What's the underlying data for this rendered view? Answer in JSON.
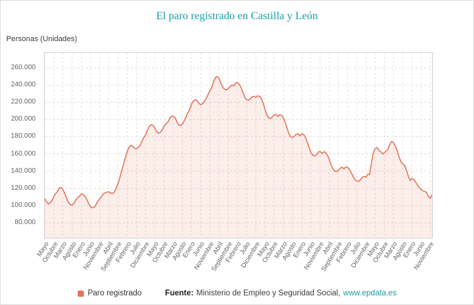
{
  "title": "El paro registrado en Castilla y León",
  "y_axis_label": "Personas (Unidades)",
  "legend": {
    "label": "Paro registrado"
  },
  "footer": {
    "source_prefix": "Fuente:",
    "source_text": "Ministerio de Empleo y Seguridad Social,",
    "link": "www.epdata.es"
  },
  "colors": {
    "accent_teal": "#169fa6",
    "line": "#e2775c",
    "fill": "rgba(226,119,92,0.12)",
    "grid_horizontal": "#dedede",
    "grid_vertical": "#f0dcd5",
    "axis_text": "#626262"
  },
  "chart_data": {
    "type": "area",
    "title": "El paro registrado en Castilla y León",
    "xlabel": "",
    "ylabel": "Personas (Unidades)",
    "ylim": [
      80000,
      260000
    ],
    "grid": true,
    "legend_position": "bottom",
    "y_tick_values": [
      260000,
      240000,
      220000,
      200000,
      180000,
      160000,
      140000,
      120000,
      100000,
      80000
    ],
    "y_tick_labels": [
      "260.000",
      "240.000",
      "220.000",
      "200.000",
      "180.000",
      "160.000",
      "140.000",
      "120.000",
      "100.000",
      "80.000"
    ],
    "x_tick_every": 5,
    "x_tick_labels": [
      "Mayo",
      "Octubre",
      "Marzo",
      "Agosto",
      "Enero",
      "Junio",
      "Noviembre",
      "Abril",
      "Septiembre",
      "Febrero",
      "Julio",
      "Diciembre",
      "Mayo",
      "Octubre",
      "Marzo",
      "Agosto",
      "Enero",
      "Junio",
      "Noviembre",
      "Abril",
      "Septiembre",
      "Febrero",
      "Julio",
      "Diciembre",
      "Mayo",
      "Octubre",
      "Marzo",
      "Agosto",
      "Enero",
      "Junio",
      "Noviembre",
      "Abril",
      "Septiembre",
      "Febrero",
      "Julio",
      "Diciembre",
      "Mayo",
      "Octubre",
      "Marzo",
      "Agosto",
      "Enero",
      "Junio",
      "Noviembre"
    ],
    "series": [
      {
        "name": "Paro registrado",
        "color": "#e2775c",
        "start_label": "Mayo",
        "values": [
          108000,
          104500,
          102000,
          103000,
          106000,
          110500,
          114000,
          116500,
          120500,
          121000,
          118500,
          114000,
          108000,
          103500,
          101000,
          100500,
          103000,
          106500,
          109000,
          111000,
          113500,
          113000,
          110500,
          107000,
          102000,
          98500,
          97500,
          98000,
          101000,
          105000,
          108000,
          110500,
          113500,
          115000,
          115500,
          116000,
          114500,
          114000,
          116000,
          120000,
          126000,
          133000,
          141000,
          148000,
          156000,
          163000,
          168000,
          170000,
          169000,
          166500,
          166000,
          167500,
          170000,
          175000,
          179000,
          182000,
          188000,
          192000,
          194000,
          193500,
          190000,
          186000,
          184000,
          185000,
          188000,
          192000,
          195000,
          196500,
          201000,
          203500,
          204000,
          202000,
          197500,
          193500,
          193000,
          194500,
          198500,
          203000,
          208000,
          211500,
          218000,
          221500,
          223000,
          222000,
          219000,
          217000,
          218500,
          221000,
          224500,
          229000,
          233500,
          237000,
          244000,
          248500,
          250000,
          247500,
          242000,
          237500,
          235000,
          234500,
          236000,
          238500,
          240000,
          239000,
          242500,
          243000,
          241000,
          237000,
          231500,
          226000,
          223000,
          222500,
          224000,
          226500,
          227000,
          225500,
          227500,
          227000,
          224500,
          219000,
          212000,
          205500,
          202000,
          201000,
          203000,
          205500,
          206000,
          203500,
          205500,
          205000,
          202000,
          196500,
          190000,
          183500,
          180000,
          179000,
          180500,
          183000,
          183500,
          181000,
          183500,
          182500,
          179500,
          174000,
          167500,
          161500,
          158500,
          157500,
          159000,
          162000,
          163000,
          160500,
          162500,
          161500,
          158500,
          153500,
          147500,
          142500,
          140000,
          139500,
          141000,
          143500,
          144500,
          142500,
          145000,
          144500,
          142000,
          138000,
          133500,
          130000,
          128500,
          128000,
          130000,
          133000,
          134000,
          133000,
          136500,
          136000,
          150000,
          161500,
          166000,
          167500,
          164000,
          162500,
          160000,
          161500,
          163500,
          165500,
          171000,
          174500,
          173000,
          169000,
          163500,
          156500,
          151000,
          148500,
          146500,
          141500,
          134500,
          129000,
          131500,
          130500,
          127500,
          124000,
          121000,
          118500,
          117000,
          116500,
          115000,
          110500,
          108500,
          112500
        ]
      }
    ]
  }
}
